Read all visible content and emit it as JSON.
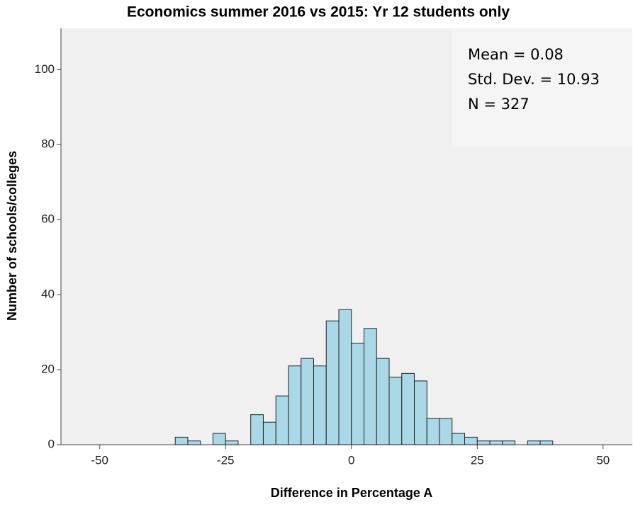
{
  "chart_data": {
    "type": "histogram",
    "title": "Economics summer 2016 vs 2015: Yr 12 students only",
    "x_label": "Difference in Percentage A",
    "y_label": "Number of schools/colleges",
    "bins": [
      -35,
      -32.5,
      -30,
      -27.5,
      -25,
      -22.5,
      -20,
      -17.5,
      -15,
      -12.5,
      -10,
      -7.5,
      -5,
      -2.5,
      0,
      2.5,
      5,
      7.5,
      10,
      12.5,
      15,
      17.5,
      20,
      22.5,
      25,
      27.5,
      30,
      32.5,
      35,
      37.5,
      40
    ],
    "values": [
      2,
      1,
      0,
      3,
      1,
      0,
      8,
      6,
      13,
      21,
      23,
      21,
      33,
      36,
      27,
      31,
      23,
      18,
      19,
      17,
      7,
      7,
      3,
      2,
      1,
      1,
      1,
      0,
      1,
      1
    ],
    "color": "#aad8e6",
    "xlim": [
      -57.7,
      55.8
    ],
    "xticks": [
      -50,
      -25,
      0,
      25,
      50
    ],
    "ylim": [
      0,
      111
    ],
    "yticks": [
      0,
      20,
      40,
      60,
      80,
      100
    ],
    "annotations": [
      "Mean = 0.08",
      "Std. Dev. = 10.93",
      "N = 327"
    ]
  }
}
